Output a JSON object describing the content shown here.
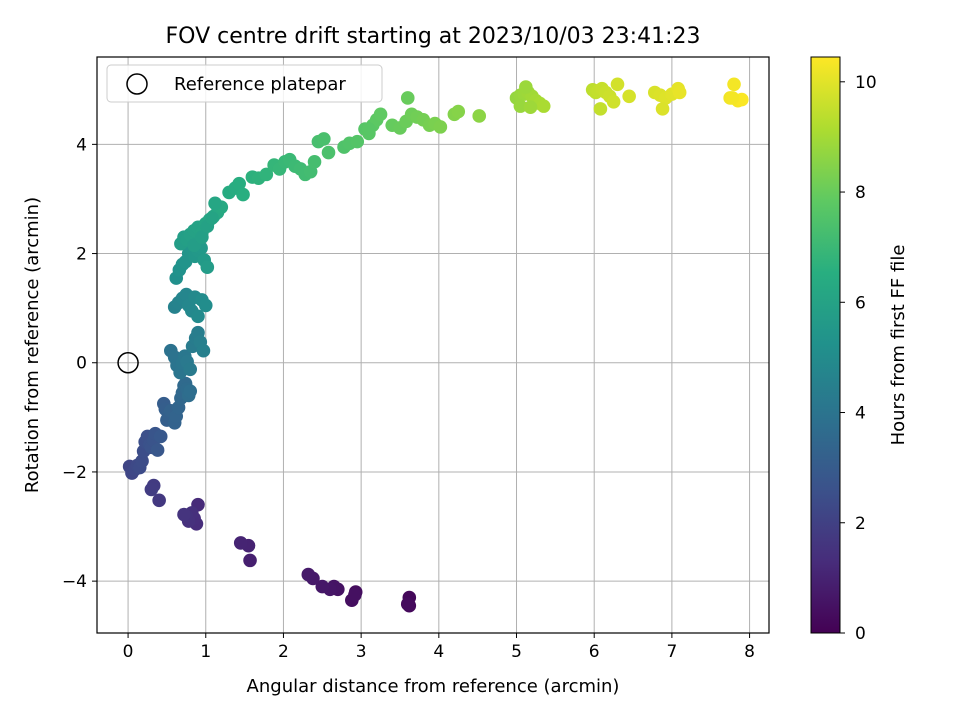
{
  "chart_data": {
    "type": "scatter",
    "title": "FOV centre drift starting at 2023/10/03 23:41:23",
    "xlabel": "Angular distance from reference (arcmin)",
    "ylabel": "Rotation from reference (arcmin)",
    "xlim": [
      -0.4,
      8.25
    ],
    "ylim": [
      -4.95,
      5.6
    ],
    "xticks": [
      0,
      1,
      2,
      3,
      4,
      5,
      6,
      7,
      8
    ],
    "yticks": [
      -4,
      -2,
      0,
      2,
      4
    ],
    "grid": true,
    "legend": {
      "position": "top-left",
      "entries": [
        "Reference platepar"
      ]
    },
    "reference_point": {
      "x": 0,
      "y": 0,
      "label": "Reference platepar"
    },
    "colorbar": {
      "label": "Hours from first FF file",
      "colormap": "viridis",
      "range": [
        0,
        10.45
      ],
      "ticks": [
        0,
        2,
        4,
        6,
        8,
        10
      ]
    },
    "series": [
      {
        "x": [
          3.62,
          3.62,
          3.6,
          2.93,
          2.88,
          2.92,
          2.7,
          2.65,
          2.6,
          2.5,
          2.38,
          2.32,
          1.57,
          1.55,
          1.45,
          0.9,
          0.88,
          0.85,
          0.82,
          0.78,
          0.75,
          0.72,
          0.4,
          0.33,
          0.3,
          0.02,
          0.05,
          0.09,
          0.12,
          0.15,
          0.18,
          0.2,
          0.22,
          0.25,
          0.28,
          0.3,
          0.33,
          0.35,
          0.38,
          0.42,
          0.46,
          0.48,
          0.5,
          0.52,
          0.55,
          0.6,
          0.62,
          0.65,
          0.68,
          0.7,
          0.72,
          0.74,
          0.76,
          0.78,
          0.8,
          0.55,
          0.6,
          0.63,
          0.67,
          0.7,
          0.73,
          0.76,
          0.8,
          0.83,
          0.87,
          0.9,
          0.93,
          0.97,
          0.6,
          0.65,
          0.7,
          0.75,
          0.78,
          0.82,
          0.86,
          0.9,
          0.95,
          1.0,
          0.62,
          0.66,
          0.7,
          0.74,
          0.78,
          0.82,
          0.86,
          0.9,
          0.94,
          0.98,
          1.02,
          0.68,
          0.72,
          0.76,
          0.8,
          0.85,
          0.9,
          0.95,
          1.0,
          1.05,
          1.1,
          1.15,
          1.2,
          0.85,
          0.95,
          1.02,
          1.08,
          1.12,
          1.3,
          1.38,
          1.43,
          1.48,
          1.6,
          1.68,
          1.78,
          1.88,
          1.95,
          2.02,
          2.08,
          2.15,
          2.22,
          2.28,
          2.35,
          2.4,
          2.45,
          2.52,
          2.58,
          2.78,
          2.85,
          2.95,
          3.05,
          3.1,
          3.15,
          3.2,
          3.25,
          3.1,
          3.4,
          3.5,
          3.58,
          3.65,
          3.72,
          3.8,
          3.88,
          3.95,
          4.02,
          3.6,
          4.2,
          4.25,
          4.52,
          5.0,
          5.05,
          5.1,
          5.15,
          5.2,
          5.25,
          5.3,
          5.35,
          5.05,
          5.12,
          5.18,
          5.98,
          6.02,
          6.05,
          6.1,
          6.15,
          6.2,
          6.25,
          6.3,
          6.08,
          6.45,
          6.78,
          6.85,
          6.92,
          7.0,
          7.08,
          7.1,
          6.88,
          7.75,
          7.8,
          7.85,
          7.9,
          7.78
        ],
        "y": [
          -4.3,
          -4.45,
          -4.42,
          -4.2,
          -4.35,
          -4.25,
          -4.15,
          -4.1,
          -4.15,
          -4.1,
          -3.95,
          -3.88,
          -3.62,
          -3.35,
          -3.3,
          -2.6,
          -2.95,
          -2.85,
          -2.75,
          -2.9,
          -2.8,
          -2.78,
          -2.52,
          -2.25,
          -2.32,
          -1.9,
          -2.02,
          -1.95,
          -1.88,
          -1.92,
          -1.8,
          -1.62,
          -1.45,
          -1.35,
          -1.5,
          -1.55,
          -1.42,
          -1.3,
          -1.6,
          -1.35,
          -0.75,
          -0.85,
          -1.05,
          -0.95,
          -0.88,
          -1.1,
          -0.98,
          -0.82,
          -0.65,
          -0.55,
          -0.42,
          -0.38,
          -0.48,
          -0.6,
          -0.52,
          0.22,
          0.1,
          -0.05,
          -0.18,
          0.0,
          0.12,
          0.02,
          -0.12,
          0.3,
          0.45,
          0.55,
          0.38,
          0.22,
          1.02,
          1.1,
          1.18,
          1.25,
          1.05,
          0.95,
          1.2,
          0.85,
          1.15,
          1.05,
          1.55,
          1.7,
          1.8,
          1.85,
          2.0,
          2.1,
          1.95,
          2.05,
          2.1,
          1.88,
          1.75,
          2.18,
          2.3,
          2.25,
          2.35,
          2.42,
          2.48,
          2.38,
          2.55,
          2.62,
          2.68,
          2.75,
          2.85,
          2.15,
          2.3,
          2.5,
          2.65,
          2.92,
          3.12,
          3.2,
          3.28,
          3.08,
          3.4,
          3.38,
          3.45,
          3.62,
          3.55,
          3.68,
          3.72,
          3.6,
          3.55,
          3.45,
          3.5,
          3.68,
          4.05,
          4.1,
          3.85,
          3.95,
          4.02,
          4.05,
          4.28,
          4.2,
          4.35,
          4.45,
          4.55,
          4.28,
          4.35,
          4.3,
          4.42,
          4.55,
          4.5,
          4.45,
          4.35,
          4.38,
          4.32,
          4.85,
          4.55,
          4.6,
          4.52,
          4.85,
          4.9,
          4.92,
          4.95,
          4.88,
          4.8,
          4.75,
          4.7,
          4.7,
          5.05,
          4.68,
          5.0,
          4.95,
          4.98,
          5.02,
          4.95,
          4.88,
          4.78,
          5.1,
          4.65,
          4.88,
          4.95,
          4.9,
          4.85,
          4.92,
          5.02,
          4.95,
          4.65,
          4.85,
          5.1,
          4.8,
          4.82,
          4.85
        ],
        "hours": [
          0.2,
          0.25,
          0.3,
          0.35,
          0.4,
          0.45,
          0.5,
          0.55,
          0.6,
          0.65,
          0.7,
          0.75,
          0.9,
          1.0,
          1.05,
          1.25,
          1.3,
          1.35,
          1.4,
          1.45,
          1.5,
          1.55,
          1.7,
          1.8,
          1.85,
          2.15,
          2.2,
          2.25,
          2.3,
          2.35,
          2.4,
          2.45,
          2.5,
          2.55,
          2.6,
          2.65,
          2.7,
          2.75,
          2.8,
          2.85,
          3.05,
          3.1,
          3.15,
          3.2,
          3.25,
          3.3,
          3.35,
          3.4,
          3.45,
          3.5,
          3.55,
          3.6,
          3.65,
          3.7,
          3.75,
          3.9,
          3.95,
          4.0,
          4.05,
          4.1,
          4.15,
          4.2,
          4.25,
          4.3,
          4.35,
          4.4,
          4.45,
          4.5,
          4.6,
          4.65,
          4.7,
          4.75,
          4.8,
          4.85,
          4.9,
          4.95,
          5.0,
          5.05,
          5.2,
          5.25,
          5.3,
          5.35,
          5.4,
          5.45,
          5.5,
          5.55,
          5.6,
          5.65,
          5.7,
          5.75,
          5.8,
          5.85,
          5.9,
          5.95,
          6.0,
          6.05,
          6.1,
          6.15,
          6.2,
          6.25,
          6.3,
          5.75,
          5.85,
          5.95,
          6.05,
          6.15,
          6.4,
          6.45,
          6.5,
          6.55,
          6.65,
          6.7,
          6.75,
          6.85,
          6.9,
          6.95,
          7.0,
          7.05,
          7.1,
          7.15,
          7.2,
          7.25,
          7.3,
          7.35,
          7.4,
          7.5,
          7.55,
          7.6,
          7.65,
          7.7,
          7.75,
          7.8,
          7.85,
          7.7,
          7.95,
          8.0,
          8.05,
          8.1,
          8.15,
          8.2,
          8.25,
          8.3,
          8.35,
          8.0,
          8.45,
          8.5,
          8.6,
          8.75,
          8.8,
          8.85,
          8.9,
          8.95,
          9.0,
          9.05,
          9.1,
          8.8,
          8.85,
          8.9,
          9.4,
          9.45,
          9.5,
          9.55,
          9.6,
          9.65,
          9.7,
          9.75,
          9.5,
          9.8,
          9.85,
          9.9,
          9.95,
          10.0,
          10.05,
          10.1,
          9.9,
          10.25,
          10.3,
          10.35,
          10.4,
          10.3
        ]
      }
    ]
  }
}
